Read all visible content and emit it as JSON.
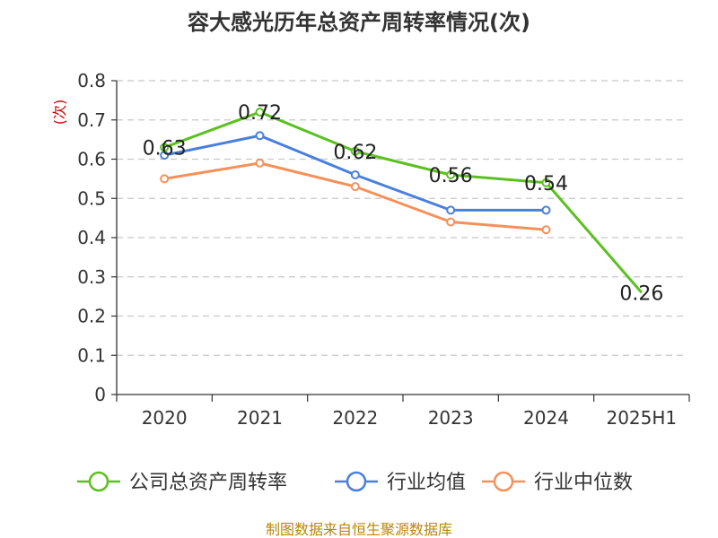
{
  "chart_data": {
    "type": "line",
    "title": "容大感光历年总资产周转率情况(次)",
    "ylabel": "(次)",
    "xlabel": "",
    "categories": [
      "2020",
      "2021",
      "2022",
      "2023",
      "2024",
      "2025H1"
    ],
    "ylim": [
      0,
      0.8
    ],
    "yticks": [
      "0",
      "0.1",
      "0.2",
      "0.3",
      "0.4",
      "0.5",
      "0.6",
      "0.7",
      "0.8"
    ],
    "ytick_values": [
      0,
      0.1,
      0.2,
      0.3,
      0.4,
      0.5,
      0.6,
      0.7,
      0.8
    ],
    "grid": true,
    "legend_position": "bottom",
    "series": [
      {
        "name": "公司总资产周转率",
        "color": "#5cc021",
        "values": [
          0.63,
          0.72,
          0.62,
          0.56,
          0.54,
          0.26
        ],
        "labels": [
          "0.63",
          "0.72",
          "0.62",
          "0.56",
          "0.54",
          "0.26"
        ]
      },
      {
        "name": "行业均值",
        "color": "#4a7fdc",
        "values": [
          0.61,
          0.66,
          0.56,
          0.47,
          0.47,
          null
        ]
      },
      {
        "name": "行业中位数",
        "color": "#f4915b",
        "values": [
          0.55,
          0.59,
          0.53,
          0.44,
          0.42,
          null
        ]
      }
    ]
  },
  "source": "制图数据来自恒生聚源数据库"
}
